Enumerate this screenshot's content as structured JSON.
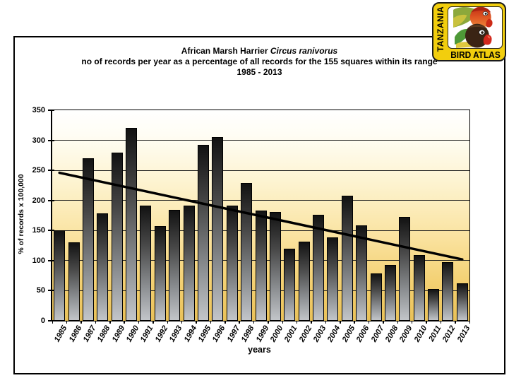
{
  "header": {
    "title_main": "African Marsh Harrier ",
    "title_species": "Circus ranivorus",
    "subtitle": "no of records per year as a percentage of all records for the 155 squares within its range",
    "period": "1985 - 2013"
  },
  "logo": {
    "country": "TANZANIA",
    "name": "BIRD ATLAS",
    "bg_color": "#F2CE0D"
  },
  "chart_data": {
    "type": "bar",
    "title": "African Marsh Harrier Circus ranivorus",
    "subtitle": "no of records per year as a percentage of all records for the 155 squares within its range",
    "period": "1985 - 2013",
    "xlabel": "years",
    "ylabel": "% of records x 100,000",
    "ylim": [
      0,
      350
    ],
    "yticks": [
      0,
      50,
      100,
      150,
      200,
      250,
      300,
      350
    ],
    "grid": true,
    "legend": "none",
    "categories": [
      "1985",
      "1986",
      "1987",
      "1988",
      "1989",
      "1990",
      "1991",
      "1992",
      "1993",
      "1994",
      "1995",
      "1996",
      "1997",
      "1998",
      "1999",
      "2000",
      "2001",
      "2002",
      "2003",
      "2004",
      "2005",
      "2006",
      "2007",
      "2008",
      "2009",
      "2010",
      "2011",
      "2012",
      "2013"
    ],
    "values": [
      150,
      130,
      270,
      178,
      280,
      321,
      192,
      157,
      185,
      192,
      293,
      305,
      191,
      229,
      183,
      181,
      120,
      131,
      176,
      139,
      208,
      158,
      79,
      93,
      173,
      109,
      53,
      97,
      62
    ],
    "trendline": {
      "start_value": 246,
      "end_value": 102
    },
    "colors": {
      "bar_top": "#121212",
      "bar_bottom": "#c2c5c9",
      "bar_border": "#000000",
      "plot_bg_top": "#ffffff",
      "plot_bg_bottom": "#e9c158",
      "gridline": "#1a1a1a",
      "trend": "#000000"
    }
  }
}
